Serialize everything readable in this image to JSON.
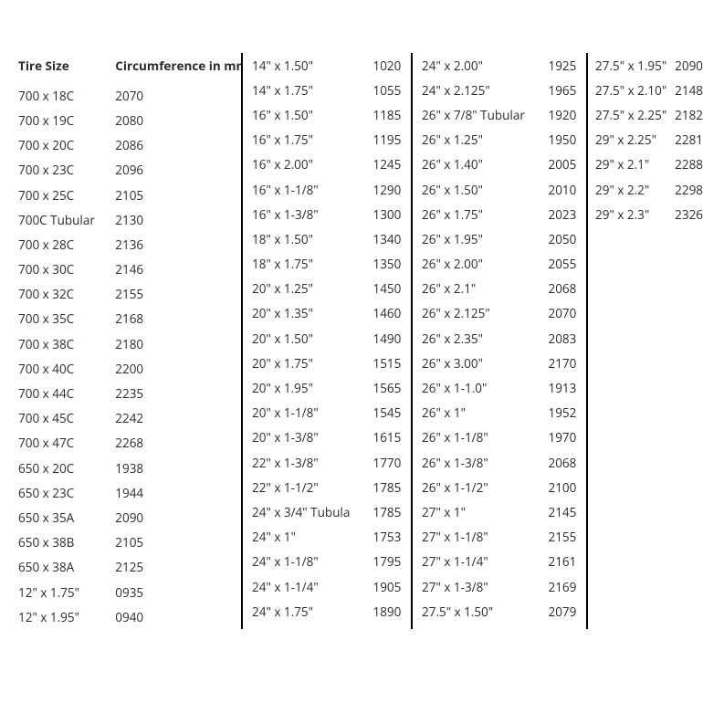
{
  "header": {
    "size": "Tire Size",
    "circ": "Circumference in mm"
  },
  "columns": [
    {
      "class": "c1",
      "border": true,
      "has_header": true,
      "rows": [
        {
          "size": "700 x 18C",
          "circ": "2070"
        },
        {
          "size": "700 x 19C",
          "circ": "2080"
        },
        {
          "size": "700 x 20C",
          "circ": "2086"
        },
        {
          "size": "700 x 23C",
          "circ": "2096"
        },
        {
          "size": "700 x 25C",
          "circ": "2105"
        },
        {
          "size": "700C Tubular",
          "circ": "2130"
        },
        {
          "size": "700 x 28C",
          "circ": "2136"
        },
        {
          "size": "700 x 30C",
          "circ": "2146"
        },
        {
          "size": "700 x 32C",
          "circ": "2155"
        },
        {
          "size": "700 x 35C",
          "circ": "2168"
        },
        {
          "size": "700 x 38C",
          "circ": "2180"
        },
        {
          "size": "700 x 40C",
          "circ": "2200"
        },
        {
          "size": "700 x 44C",
          "circ": "2235"
        },
        {
          "size": "700 x 45C",
          "circ": "2242"
        },
        {
          "size": "700 x 47C",
          "circ": "2268"
        },
        {
          "size": "650 x 20C",
          "circ": "1938"
        },
        {
          "size": "650 x 23C",
          "circ": "1944"
        },
        {
          "size": "650 x 35A",
          "circ": "2090"
        },
        {
          "size": "650 x 38B",
          "circ": "2105"
        },
        {
          "size": "650 x 38A",
          "circ": "2125"
        },
        {
          "size": "12\" x 1.75\"",
          "circ": "0935"
        },
        {
          "size": "12\" x 1.95\"",
          "circ": "0940"
        }
      ]
    },
    {
      "class": "c2",
      "border": true,
      "has_header": false,
      "rows": [
        {
          "size": "14\" x 1.50\"",
          "circ": "1020"
        },
        {
          "size": "14\" x 1.75\"",
          "circ": "1055"
        },
        {
          "size": "16\" x 1.50\"",
          "circ": "1185"
        },
        {
          "size": "16\" x 1.75\"",
          "circ": "1195"
        },
        {
          "size": "16\" x 2.00\"",
          "circ": "1245"
        },
        {
          "size": "16\" x 1-1/8\"",
          "circ": "1290"
        },
        {
          "size": "16\" x 1-3/8\"",
          "circ": "1300"
        },
        {
          "size": "18\" x 1.50\"",
          "circ": "1340"
        },
        {
          "size": "18\" x 1.75\"",
          "circ": "1350"
        },
        {
          "size": "20\" x 1.25\"",
          "circ": "1450"
        },
        {
          "size": "20\" x 1.35\"",
          "circ": "1460"
        },
        {
          "size": "20\" x 1.50\"",
          "circ": "1490"
        },
        {
          "size": "20\" x 1.75\"",
          "circ": "1515"
        },
        {
          "size": "20\" x 1.95\"",
          "circ": "1565"
        },
        {
          "size": "20\" x 1-1/8\"",
          "circ": "1545"
        },
        {
          "size": "20\" x 1-3/8\"",
          "circ": "1615"
        },
        {
          "size": "22\" x 1-3/8\"",
          "circ": "1770"
        },
        {
          "size": "22\" x 1-1/2\"",
          "circ": "1785"
        },
        {
          "size": "24\" x 3/4\" Tubula",
          "circ": "1785"
        },
        {
          "size": "24\" x 1\"",
          "circ": "1753"
        },
        {
          "size": "24\" x 1-1/8\"",
          "circ": "1795"
        },
        {
          "size": "24\" x 1-1/4\"",
          "circ": "1905"
        },
        {
          "size": "24\" x 1.75\"",
          "circ": "1890"
        }
      ]
    },
    {
      "class": "c3",
      "border": true,
      "has_header": false,
      "rows": [
        {
          "size": "24\" x 2.00\"",
          "circ": "1925"
        },
        {
          "size": "24\" x 2.125\"",
          "circ": "1965"
        },
        {
          "size": "26\" x 7/8\" Tubular",
          "circ": "1920"
        },
        {
          "size": "26\" x 1.25\"",
          "circ": "1950"
        },
        {
          "size": "26\" x 1.40\"",
          "circ": "2005"
        },
        {
          "size": "26\" x 1.50\"",
          "circ": "2010"
        },
        {
          "size": "26\" x 1.75\"",
          "circ": "2023"
        },
        {
          "size": "26\" x 1.95\"",
          "circ": "2050"
        },
        {
          "size": "26\" x 2.00\"",
          "circ": "2055"
        },
        {
          "size": "26\" x 2.1\"",
          "circ": "2068"
        },
        {
          "size": "26\" x 2.125\"",
          "circ": "2070"
        },
        {
          "size": "26\" x 2.35\"",
          "circ": "2083"
        },
        {
          "size": "26\" x 3.00\"",
          "circ": "2170"
        },
        {
          "size": "26\" x 1-1.0\"",
          "circ": "1913"
        },
        {
          "size": "26\" x 1\"",
          "circ": "1952"
        },
        {
          "size": "26\" x 1-1/8\"",
          "circ": "1970"
        },
        {
          "size": "26\" x 1-3/8\"",
          "circ": "2068"
        },
        {
          "size": "26\" x 1-1/2\"",
          "circ": "2100"
        },
        {
          "size": "27\" x 1\"",
          "circ": "2145"
        },
        {
          "size": "27\" x 1-1/8\"",
          "circ": "2155"
        },
        {
          "size": "27\" x 1-1/4\"",
          "circ": "2161"
        },
        {
          "size": "27\" x 1-3/8\"",
          "circ": "2169"
        },
        {
          "size": "27.5\" x 1.50\"",
          "circ": "2079"
        }
      ]
    },
    {
      "class": "c4",
      "border": false,
      "has_header": false,
      "rows": [
        {
          "size": "27.5\" x 1.95\"",
          "circ": "2090"
        },
        {
          "size": "27.5\" x 2.10\"",
          "circ": "2148"
        },
        {
          "size": "27.5\" x 2.25\"",
          "circ": "2182"
        },
        {
          "size": "29\" x 2.25\"",
          "circ": "2281"
        },
        {
          "size": "29\" x 2.1\"",
          "circ": "2288"
        },
        {
          "size": "29\" x 2.2\"",
          "circ": "2298"
        },
        {
          "size": "29\" x 2.3\"",
          "circ": "2326"
        }
      ]
    }
  ]
}
